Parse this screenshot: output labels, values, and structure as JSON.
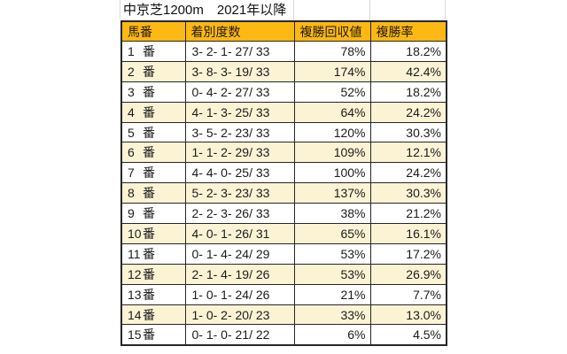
{
  "title": "中京芝1200m　2021年以降",
  "colors": {
    "header_bg": "#FCB813",
    "alt_row_bg": "#FCF3D5",
    "border": "#262626"
  },
  "table": {
    "headers": [
      "馬番",
      "着別度数",
      "複勝回収値",
      "複勝率"
    ],
    "horse_suffix": "番",
    "rows": [
      {
        "no": "1",
        "counts": "3- 2- 1- 27/ 33",
        "fukusho_return": "78%",
        "fukusho_rate": "18.2%"
      },
      {
        "no": "2",
        "counts": "3- 8- 3- 19/ 33",
        "fukusho_return": "174%",
        "fukusho_rate": "42.4%"
      },
      {
        "no": "3",
        "counts": "0- 4- 2- 27/ 33",
        "fukusho_return": "52%",
        "fukusho_rate": "18.2%"
      },
      {
        "no": "4",
        "counts": "4- 1- 3- 25/ 33",
        "fukusho_return": "64%",
        "fukusho_rate": "24.2%"
      },
      {
        "no": "5",
        "counts": "3- 5- 2- 23/ 33",
        "fukusho_return": "120%",
        "fukusho_rate": "30.3%"
      },
      {
        "no": "6",
        "counts": "1- 1- 2- 29/ 33",
        "fukusho_return": "109%",
        "fukusho_rate": "12.1%"
      },
      {
        "no": "7",
        "counts": "4- 4- 0- 25/ 33",
        "fukusho_return": "100%",
        "fukusho_rate": "24.2%"
      },
      {
        "no": "8",
        "counts": "5- 2- 3- 23/ 33",
        "fukusho_return": "137%",
        "fukusho_rate": "30.3%"
      },
      {
        "no": "9",
        "counts": "2- 2- 3- 26/ 33",
        "fukusho_return": "38%",
        "fukusho_rate": "21.2%"
      },
      {
        "no": "10",
        "counts": "4- 0- 1- 26/ 31",
        "fukusho_return": "65%",
        "fukusho_rate": "16.1%"
      },
      {
        "no": "11",
        "counts": "0- 1- 4- 24/ 29",
        "fukusho_return": "53%",
        "fukusho_rate": "17.2%"
      },
      {
        "no": "12",
        "counts": "2- 1- 4- 19/ 26",
        "fukusho_return": "53%",
        "fukusho_rate": "26.9%"
      },
      {
        "no": "13",
        "counts": "1- 0- 1- 24/ 26",
        "fukusho_return": "21%",
        "fukusho_rate": "7.7%"
      },
      {
        "no": "14",
        "counts": "1- 0- 2- 20/ 23",
        "fukusho_return": "33%",
        "fukusho_rate": "13.0%"
      },
      {
        "no": "15",
        "counts": "0- 1- 0- 21/ 22",
        "fukusho_return": "6%",
        "fukusho_rate": "4.5%"
      }
    ]
  }
}
